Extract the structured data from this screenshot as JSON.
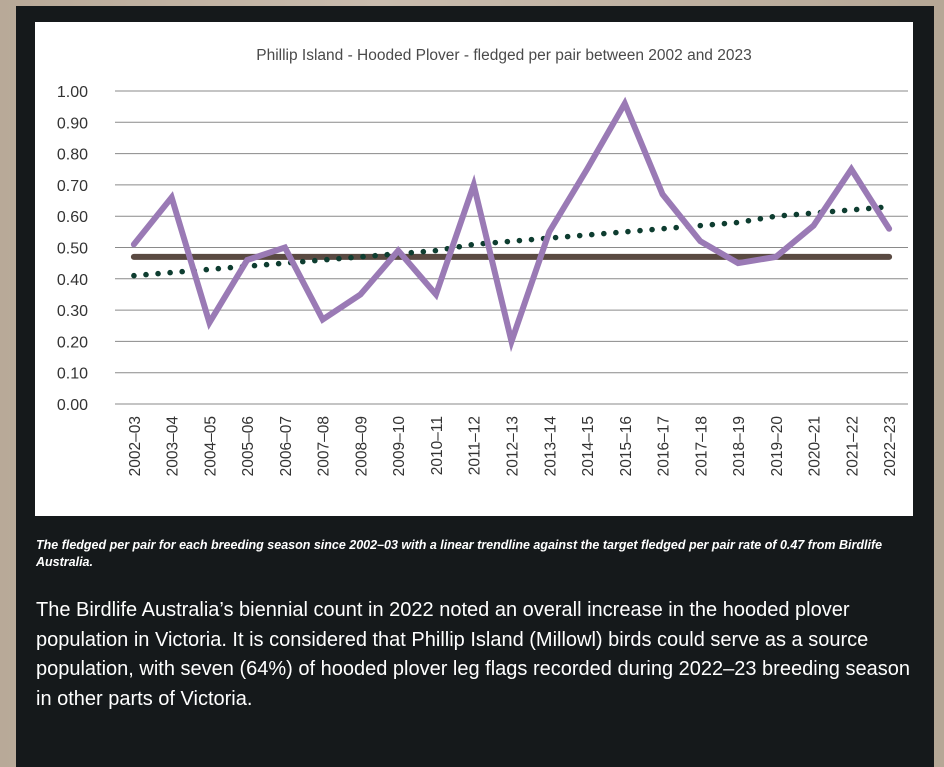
{
  "chart_data": {
    "type": "line",
    "title": "Phillip Island - Hooded Plover - fledged per pair between 2002 and 2023",
    "categories": [
      "2002–03",
      "2003–04",
      "2004–05",
      "2005–06",
      "2006–07",
      "2007–08",
      "2008–09",
      "2009–10",
      "2010–11",
      "2011–12",
      "2012–13",
      "2013–14",
      "2014–15",
      "2015–16",
      "2016–17",
      "2017–18",
      "2018–19",
      "2019–20",
      "2020–21",
      "2021–22",
      "2022–23"
    ],
    "y_ticks": [
      "0.00",
      "0.10",
      "0.20",
      "0.30",
      "0.40",
      "0.50",
      "0.60",
      "0.70",
      "0.80",
      "0.90",
      "1.00"
    ],
    "ylim": [
      0,
      1
    ],
    "grid": true,
    "series": [
      {
        "role": "fledged",
        "color": "#9a7ab5",
        "values": [
          0.51,
          0.66,
          0.26,
          0.46,
          0.5,
          0.27,
          0.35,
          0.49,
          0.35,
          0.7,
          0.2,
          0.55,
          0.75,
          0.96,
          0.67,
          0.52,
          0.45,
          0.47,
          0.57,
          0.75,
          0.56
        ]
      },
      {
        "role": "target",
        "color": "#5a4a42",
        "values": [
          0.47,
          0.47,
          0.47,
          0.47,
          0.47,
          0.47,
          0.47,
          0.47,
          0.47,
          0.47,
          0.47,
          0.47,
          0.47,
          0.47,
          0.47,
          0.47,
          0.47,
          0.47,
          0.47,
          0.47,
          0.47
        ]
      },
      {
        "role": "trendline",
        "color": "#0e3d30",
        "values": [
          0.41,
          0.42,
          0.43,
          0.44,
          0.45,
          0.46,
          0.47,
          0.48,
          0.49,
          0.51,
          0.52,
          0.53,
          0.54,
          0.55,
          0.56,
          0.57,
          0.58,
          0.6,
          0.61,
          0.62,
          0.63
        ]
      }
    ]
  },
  "caption": "The fledged per pair for each breeding season since 2002–03 with a linear trendline against the target fledged per pair rate of 0.47 from Birdlife Australia.",
  "body": "The Birdlife Australia’s biennial count in 2022 noted an overall increase in the hooded plover population in Victoria. It is considered that Phillip Island (Millowl) birds could serve as a source population, with seven (64%) of hooded plover leg flags recorded during 2022–23 breeding season in other parts of Victoria."
}
